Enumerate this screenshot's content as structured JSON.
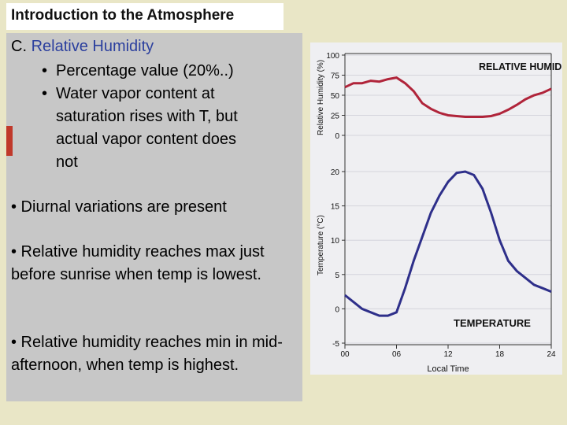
{
  "slide": {
    "title": "Introduction to the Atmosphere",
    "heading_prefix": "C.",
    "heading_text": "Relative Humidity",
    "sub_bullets": [
      "Percentage value (20%..)",
      "Water vapor content at",
      "saturation rises with T, but",
      "actual vapor content does",
      "not"
    ],
    "paragraphs": [
      "• Diurnal variations are present",
      "• Relative humidity reaches max just before sunrise when temp is lowest.",
      "• Relative humidity reaches min in mid-afternoon, when temp is highest."
    ],
    "bullet_glyph": "•"
  },
  "colors": {
    "humidity_line": "#b0243a",
    "temperature_line": "#2e2f8a",
    "heading_accent": "#2b3f9e"
  },
  "chart_data": [
    {
      "type": "line",
      "title": "RELATIVE HUMIDITY",
      "ylabel": "Relative Humidity (%)",
      "ylim": [
        0,
        100
      ],
      "yticks": [
        "0",
        "25",
        "50",
        "75",
        "100"
      ],
      "x": [
        0,
        1,
        2,
        3,
        4,
        5,
        6,
        7,
        8,
        9,
        10,
        11,
        12,
        13,
        14,
        15,
        16,
        17,
        18,
        19,
        20,
        21,
        22,
        23,
        24
      ],
      "series": [
        {
          "values": [
            60,
            65,
            65,
            68,
            67,
            70,
            72,
            65,
            55,
            40,
            33,
            28,
            25,
            24,
            23,
            23,
            23,
            24,
            27,
            32,
            38,
            45,
            50,
            53,
            58
          ]
        }
      ]
    },
    {
      "type": "line",
      "title": "TEMPERATURE",
      "ylabel": "Temperature (°C)",
      "xlabel": "Local Time",
      "xlim": [
        0,
        24
      ],
      "ylim": [
        -5,
        20
      ],
      "yticks": [
        "-5",
        "0",
        "5",
        "10",
        "15",
        "20"
      ],
      "xticks": [
        "00",
        "06",
        "12",
        "18",
        "24"
      ],
      "x": [
        0,
        1,
        2,
        3,
        4,
        5,
        6,
        7,
        8,
        9,
        10,
        11,
        12,
        13,
        14,
        15,
        16,
        17,
        18,
        19,
        20,
        21,
        22,
        23,
        24
      ],
      "series": [
        {
          "values": [
            2,
            1,
            0,
            -0.5,
            -1,
            -1,
            -0.5,
            3,
            7,
            10.5,
            14,
            16.5,
            18.5,
            19.8,
            20,
            19.5,
            17.5,
            14,
            10,
            7,
            5.5,
            4.5,
            3.5,
            3,
            2.5
          ]
        }
      ]
    }
  ]
}
